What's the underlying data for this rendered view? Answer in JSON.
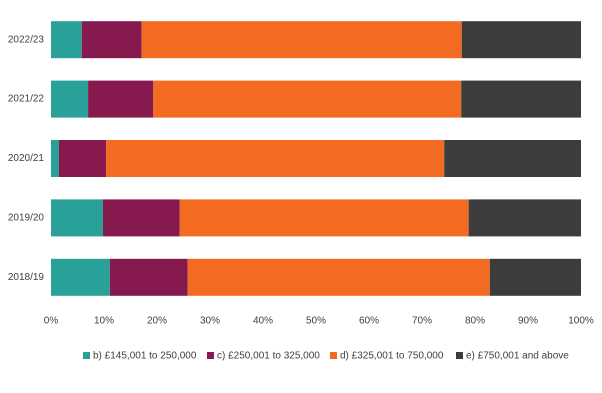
{
  "chart_data": {
    "type": "stacked-barh",
    "categories": [
      "2022/23",
      "2021/22",
      "2020/21",
      "2019/20",
      "2018/19"
    ],
    "series": [
      {
        "name": "b) £145,001 to 250,000",
        "color": "#2aa198",
        "values": [
          5.8,
          7,
          1.5,
          9.8,
          11.1
        ]
      },
      {
        "name": "c) £250,001 to 325,000",
        "color": "#861a4f",
        "values": [
          11.3,
          12.3,
          8.9,
          14.5,
          14.7
        ]
      },
      {
        "name": "d) £325,001 to 750,000",
        "color": "#f26b21",
        "values": [
          60.4,
          58.1,
          63.8,
          54.5,
          57
        ]
      },
      {
        "name": "e) £750,001 and above",
        "color": "#3c3c3c",
        "values": [
          22.5,
          22.6,
          25.8,
          21.2,
          17.2
        ]
      }
    ],
    "xlim": [
      0,
      100
    ],
    "xticks": [
      {
        "value": 0,
        "label": "0%"
      },
      {
        "value": 10,
        "label": "10%"
      },
      {
        "value": 20,
        "label": "20%"
      },
      {
        "value": 30,
        "label": "30%"
      },
      {
        "value": 40,
        "label": "40%"
      },
      {
        "value": 50,
        "label": "50%"
      },
      {
        "value": 60,
        "label": "60%"
      },
      {
        "value": 70,
        "label": "70%"
      },
      {
        "value": 80,
        "label": "80%"
      },
      {
        "value": 90,
        "label": "90%"
      },
      {
        "value": 100,
        "label": "100%"
      }
    ],
    "legend": "bottom"
  }
}
